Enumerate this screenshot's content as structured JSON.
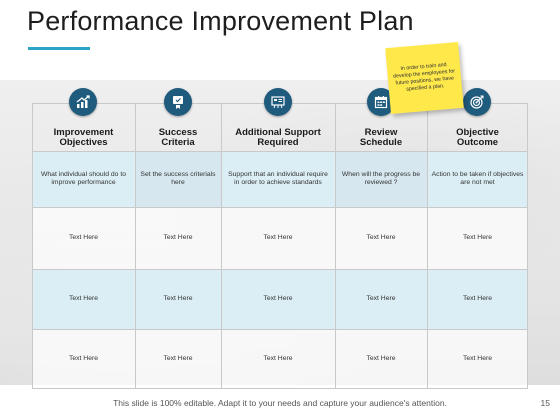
{
  "slide": {
    "title": "Performance Improvement Plan",
    "footer": "This slide is 100% editable. Adapt it to your needs and capture your audience's attention.",
    "page_number": "15",
    "accent_color": "#2ba5c6",
    "icon_color": "#1f5b7d"
  },
  "sticky_note": {
    "text": "In order to train and develop the employees for future positions, we have specified a plan.",
    "color": "#ffe84a"
  },
  "columns": [
    {
      "title": "Improvement\nObjectives",
      "icon": "growth-chart-icon"
    },
    {
      "title": "Success\nCriteria",
      "icon": "certificate-icon"
    },
    {
      "title": "Additional  Support\nRequired",
      "icon": "presentation-board-icon"
    },
    {
      "title": "Review\nSchedule",
      "icon": "calendar-icon"
    },
    {
      "title": "Objective\nOutcome",
      "icon": "target-icon"
    }
  ],
  "rows": [
    [
      "What individual should do to improve performance",
      "Set the success criterials here",
      "Support that an individual require in order to achieve standards",
      "When will the progress be reviewed ?",
      "Action to be taken if objectives are not met"
    ],
    [
      "Text Here",
      "Text Here",
      "Text Here",
      "Text Here",
      "Text Here"
    ],
    [
      "Text Here",
      "Text Here",
      "Text Here",
      "Text Here",
      "Text Here"
    ],
    [
      "Text Here",
      "Text Here",
      "Text Here",
      "Text Here",
      "Text Here"
    ]
  ]
}
